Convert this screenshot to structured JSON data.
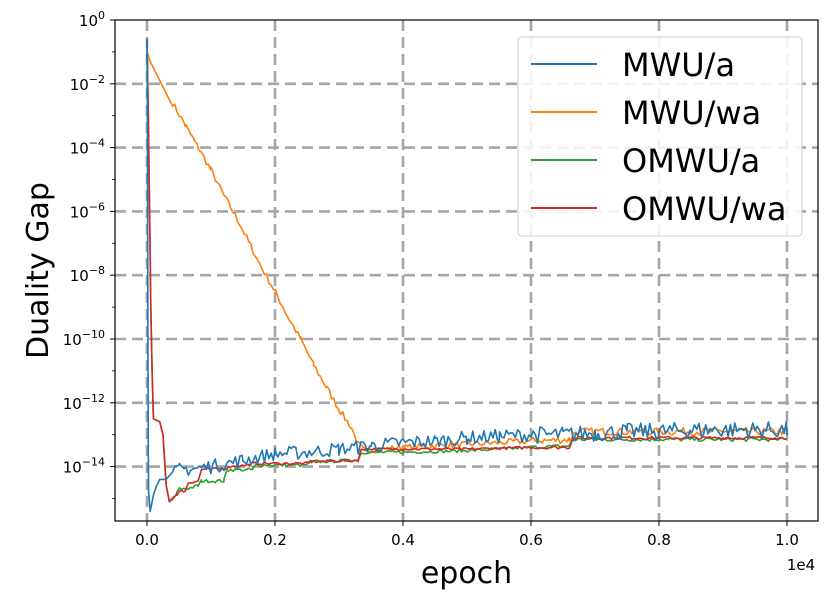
{
  "chart_data": {
    "type": "line",
    "xlabel": "epoch",
    "ylabel": "Duality Gap",
    "x_offset_label": "1e4",
    "xlim": [
      0,
      1.0
    ],
    "ylim_exp": [
      -15.7,
      0
    ],
    "y_scale": "log",
    "grid": true,
    "legend_position": "top-right",
    "x_tick_labels": [
      "0.0",
      "0.2",
      "0.4",
      "0.6",
      "0.8",
      "1.0"
    ],
    "x_ticks": [
      0.0,
      0.2,
      0.4,
      0.6,
      0.8,
      1.0
    ],
    "y_tick_labels": [
      {
        "base": "10",
        "exp": "0"
      },
      {
        "base": "10",
        "exp": "−2"
      },
      {
        "base": "10",
        "exp": "−4"
      },
      {
        "base": "10",
        "exp": "−6"
      },
      {
        "base": "10",
        "exp": "−8"
      },
      {
        "base": "10",
        "exp": "−10"
      },
      {
        "base": "10",
        "exp": "−12"
      },
      {
        "base": "10",
        "exp": "−14"
      }
    ],
    "y_ticks_exp": [
      0,
      -2,
      -4,
      -6,
      -8,
      -10,
      -12,
      -14
    ],
    "series": [
      {
        "name": "MWU/a",
        "color": "#1f77b4",
        "points": [
          [
            0.0,
            -0.6
          ],
          [
            0.0005,
            -2.5
          ],
          [
            0.001,
            -6
          ],
          [
            0.0015,
            -11
          ],
          [
            0.002,
            -13.5
          ],
          [
            0.0025,
            -14.8
          ],
          [
            0.005,
            -15.4
          ],
          [
            0.01,
            -14.9
          ],
          [
            0.015,
            -14.6
          ],
          [
            0.02,
            -14.4
          ],
          [
            0.03,
            -14.4
          ],
          [
            0.05,
            -14.1
          ],
          [
            0.08,
            -14.05
          ],
          [
            0.1,
            -14.0
          ],
          [
            0.15,
            -13.8
          ],
          [
            0.2,
            -13.6
          ],
          [
            0.25,
            -13.55
          ],
          [
            0.3,
            -13.45
          ],
          [
            0.33,
            -13.4
          ],
          [
            0.35,
            -13.35
          ],
          [
            0.4,
            -13.25
          ],
          [
            0.45,
            -13.2
          ],
          [
            0.5,
            -13.1
          ],
          [
            0.55,
            -13.05
          ],
          [
            0.6,
            -13.0
          ],
          [
            0.65,
            -13.0
          ],
          [
            0.7,
            -12.95
          ],
          [
            0.75,
            -12.9
          ],
          [
            0.8,
            -12.9
          ],
          [
            0.85,
            -12.85
          ],
          [
            0.9,
            -12.85
          ],
          [
            0.95,
            -12.85
          ],
          [
            1.0,
            -12.85
          ]
        ],
        "noise": 0.22
      },
      {
        "name": "MWU/wa",
        "color": "#ff7f0e",
        "points": [
          [
            0.0,
            -1.0
          ],
          [
            0.005,
            -1.3
          ],
          [
            0.02,
            -1.9
          ],
          [
            0.04,
            -2.6
          ],
          [
            0.06,
            -3.3
          ],
          [
            0.08,
            -4.0
          ],
          [
            0.1,
            -4.7
          ],
          [
            0.12,
            -5.5
          ],
          [
            0.14,
            -6.2
          ],
          [
            0.16,
            -7.0
          ],
          [
            0.18,
            -7.8
          ],
          [
            0.2,
            -8.5
          ],
          [
            0.22,
            -9.3
          ],
          [
            0.24,
            -10.0
          ],
          [
            0.26,
            -10.8
          ],
          [
            0.28,
            -11.5
          ],
          [
            0.3,
            -12.2
          ],
          [
            0.32,
            -12.8
          ],
          [
            0.33,
            -13.3
          ],
          [
            0.34,
            -13.5
          ],
          [
            0.4,
            -13.4
          ],
          [
            0.5,
            -13.3
          ],
          [
            0.6,
            -13.2
          ],
          [
            0.66,
            -13.15
          ],
          [
            0.67,
            -12.9
          ],
          [
            0.8,
            -12.9
          ],
          [
            0.9,
            -12.9
          ],
          [
            1.0,
            -12.9
          ]
        ],
        "noise": 0.1
      },
      {
        "name": "OMWU/a",
        "color": "#2ca02c",
        "points": [
          [
            0.0,
            -0.6
          ],
          [
            0.002,
            -3.0
          ],
          [
            0.004,
            -6.0
          ],
          [
            0.006,
            -9.0
          ],
          [
            0.008,
            -11.0
          ],
          [
            0.01,
            -12.5
          ],
          [
            0.02,
            -12.6
          ],
          [
            0.025,
            -13.0
          ],
          [
            0.03,
            -14.6
          ],
          [
            0.035,
            -15.1
          ],
          [
            0.045,
            -14.9
          ],
          [
            0.05,
            -14.7
          ],
          [
            0.06,
            -14.7
          ],
          [
            0.08,
            -14.6
          ],
          [
            0.085,
            -14.45
          ],
          [
            0.12,
            -14.45
          ],
          [
            0.125,
            -14.1
          ],
          [
            0.165,
            -14.1
          ],
          [
            0.17,
            -13.95
          ],
          [
            0.25,
            -13.95
          ],
          [
            0.255,
            -13.85
          ],
          [
            0.33,
            -13.8
          ],
          [
            0.335,
            -13.55
          ],
          [
            0.4,
            -13.55
          ],
          [
            0.5,
            -13.5
          ],
          [
            0.6,
            -13.4
          ],
          [
            0.66,
            -13.35
          ],
          [
            0.665,
            -13.15
          ],
          [
            0.8,
            -13.15
          ],
          [
            0.9,
            -13.15
          ],
          [
            1.0,
            -13.15
          ]
        ],
        "noise": 0.05
      },
      {
        "name": "OMWU/wa",
        "color": "#d62728",
        "points": [
          [
            0.0,
            -0.6
          ],
          [
            0.002,
            -3.0
          ],
          [
            0.004,
            -6.0
          ],
          [
            0.006,
            -9.0
          ],
          [
            0.008,
            -11.0
          ],
          [
            0.01,
            -12.5
          ],
          [
            0.02,
            -12.6
          ],
          [
            0.025,
            -13.0
          ],
          [
            0.03,
            -14.6
          ],
          [
            0.035,
            -15.1
          ],
          [
            0.045,
            -14.9
          ],
          [
            0.05,
            -14.8
          ],
          [
            0.06,
            -14.75
          ],
          [
            0.065,
            -14.5
          ],
          [
            0.08,
            -14.45
          ],
          [
            0.085,
            -14.1
          ],
          [
            0.125,
            -14.05
          ],
          [
            0.13,
            -14.0
          ],
          [
            0.16,
            -13.95
          ],
          [
            0.165,
            -13.9
          ],
          [
            0.25,
            -13.9
          ],
          [
            0.255,
            -13.85
          ],
          [
            0.33,
            -13.8
          ],
          [
            0.335,
            -13.45
          ],
          [
            0.4,
            -13.45
          ],
          [
            0.5,
            -13.45
          ],
          [
            0.6,
            -13.4
          ],
          [
            0.66,
            -13.4
          ],
          [
            0.665,
            -13.1
          ],
          [
            0.8,
            -13.1
          ],
          [
            0.9,
            -13.1
          ],
          [
            1.0,
            -13.1
          ]
        ],
        "noise": 0.04
      }
    ]
  }
}
